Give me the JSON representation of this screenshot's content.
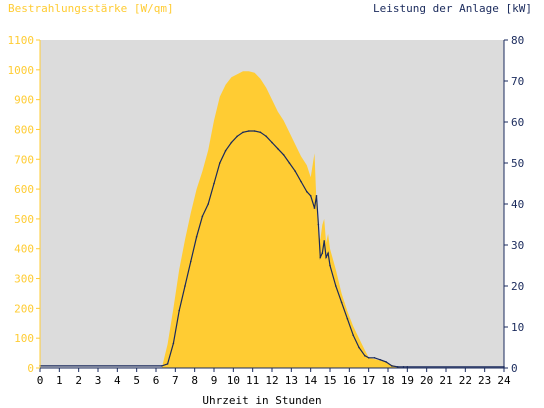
{
  "chart_data": {
    "type": "area",
    "left_axis_title": "Bestrahlungsstärke [W/qm]",
    "right_axis_title": "Leistung der Anlage [kW]",
    "xlabel": "Uhrzeit in Stunden",
    "x_ticks": [
      "0",
      "1",
      "2",
      "3",
      "4",
      "5",
      "6",
      "7",
      "8",
      "9",
      "10",
      "11",
      "12",
      "13",
      "14",
      "15",
      "16",
      "17",
      "18",
      "19",
      "20",
      "21",
      "22",
      "23",
      "24"
    ],
    "y_left_ticks": [
      "0",
      "100",
      "200",
      "300",
      "400",
      "500",
      "600",
      "700",
      "800",
      "900",
      "1000",
      "1100"
    ],
    "y_right_ticks": [
      "0",
      "10",
      "20",
      "30",
      "40",
      "50",
      "60",
      "70",
      "80"
    ],
    "xlim": [
      0,
      24
    ],
    "ylim_left": [
      0,
      1100
    ],
    "ylim_right": [
      0,
      80
    ],
    "grid": false,
    "colors": {
      "irradiance": "#ffcc33",
      "power": "#1a2a5c",
      "plot_bg": "#dcdcdc",
      "left_axis": "#ffcc33",
      "right_axis": "#1a2a5c"
    },
    "series": [
      {
        "axis": "left",
        "style": "filled-area",
        "x": [
          0,
          6.3,
          6.6,
          6.9,
          7.2,
          7.5,
          7.8,
          8.1,
          8.4,
          8.7,
          9.0,
          9.3,
          9.6,
          9.9,
          10.2,
          10.5,
          10.8,
          11.1,
          11.4,
          11.7,
          12.0,
          12.3,
          12.6,
          12.9,
          13.2,
          13.5,
          13.8,
          14.0,
          14.2,
          14.3,
          14.4,
          14.5,
          14.6,
          14.7,
          14.8,
          14.9,
          15.0,
          15.3,
          15.6,
          15.9,
          16.2,
          16.5,
          16.8,
          17.0,
          17.3,
          17.6,
          17.9,
          18.2,
          18.5,
          18.8,
          19.0,
          24
        ],
        "y": [
          0,
          0,
          80,
          200,
          330,
          430,
          520,
          600,
          660,
          730,
          830,
          910,
          950,
          975,
          985,
          995,
          995,
          990,
          970,
          940,
          900,
          860,
          830,
          790,
          750,
          710,
          680,
          640,
          720,
          550,
          450,
          430,
          480,
          500,
          420,
          450,
          400,
          330,
          250,
          190,
          140,
          100,
          60,
          35,
          30,
          25,
          20,
          10,
          4,
          0,
          0,
          0
        ]
      },
      {
        "axis": "right",
        "style": "line",
        "x": [
          0,
          6.3,
          6.6,
          6.9,
          7.2,
          7.5,
          7.8,
          8.1,
          8.4,
          8.7,
          9.0,
          9.3,
          9.6,
          9.9,
          10.2,
          10.5,
          10.8,
          11.1,
          11.4,
          11.7,
          12.0,
          12.3,
          12.6,
          12.9,
          13.2,
          13.5,
          13.8,
          14.0,
          14.2,
          14.3,
          14.4,
          14.5,
          14.6,
          14.7,
          14.8,
          14.9,
          15.0,
          15.3,
          15.6,
          15.9,
          16.2,
          16.5,
          16.8,
          17.0,
          17.3,
          17.6,
          17.9,
          18.2,
          18.5,
          18.8,
          19.0,
          24
        ],
        "y": [
          0.5,
          0.5,
          1,
          6,
          14,
          20,
          26,
          32,
          37,
          40,
          45,
          50,
          53,
          55,
          56.5,
          57.5,
          57.8,
          57.8,
          57.5,
          56.5,
          55,
          53.5,
          52,
          50,
          48,
          45.5,
          43,
          42,
          39,
          42,
          35,
          27,
          28,
          31,
          27,
          28,
          25,
          20,
          16,
          12,
          8,
          5,
          3,
          2.5,
          2.5,
          2,
          1.5,
          0.5,
          0.3,
          0.3,
          0.3,
          0.3
        ]
      }
    ]
  }
}
